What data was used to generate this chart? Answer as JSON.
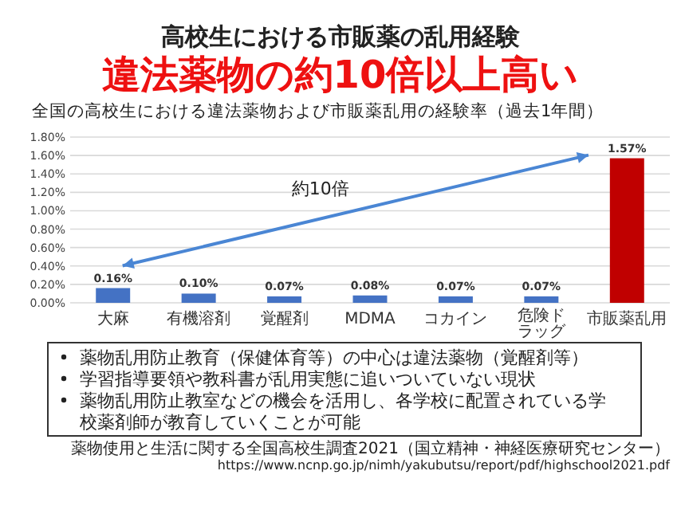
{
  "chart_data": {
    "type": "bar",
    "title": "高校生における市販薬の乱用経験",
    "subtitle": "違法薬物の約10倍以上高い",
    "categories": [
      "大麻",
      "有機溶剤",
      "覚醒剤",
      "MDMA",
      "コカイン",
      "危険ドラッグ",
      "市販薬乱用"
    ],
    "values": [
      0.16,
      0.1,
      0.07,
      0.08,
      0.07,
      0.07,
      1.57
    ],
    "colors": [
      "#4472c4",
      "#4472c4",
      "#4472c4",
      "#4472c4",
      "#4472c4",
      "#4472c4",
      "#c00000"
    ],
    "value_labels": [
      "0.16%",
      "0.10%",
      "0.07%",
      "0.08%",
      "0.07%",
      "0.07%",
      "1.57%"
    ],
    "ylim": [
      0,
      1.8
    ],
    "yticks": [
      {
        "value": 0,
        "label": "0.00%"
      },
      {
        "value": 0.2,
        "label": "0.20%"
      },
      {
        "value": 0.4,
        "label": "0.40%"
      },
      {
        "value": 0.6,
        "label": "0.60%"
      },
      {
        "value": 0.8,
        "label": "0.80%"
      },
      {
        "value": 1.0,
        "label": "1.00%"
      },
      {
        "value": 1.2,
        "label": "1.20%"
      },
      {
        "value": 1.4,
        "label": "1.40%"
      },
      {
        "value": 1.6,
        "label": "1.60%"
      },
      {
        "value": 1.8,
        "label": "1.80%"
      }
    ],
    "grid": "y",
    "annotations": [
      "全国の高校生における違法薬物および市販薬乱用の経験率（過去1年間）",
      "約10倍",
      "薬物乱用防止教育（保健体育等）の中心は違法薬物（覚醒剤等）",
      "学習指導要領や教科書が乱用実態に追いついていない現状",
      "薬物乱用防止教室などの機会を活用し、各学校に配置されている学校薬剤師が教育していくことが可能",
      "薬物使用と生活に関する全国高校生調査2021（国立精神・神経医療研究センター）",
      "https://www.ncnp.go.jp/nimh/yakubutsu/report/pdf/highschool2021.pdf"
    ]
  }
}
